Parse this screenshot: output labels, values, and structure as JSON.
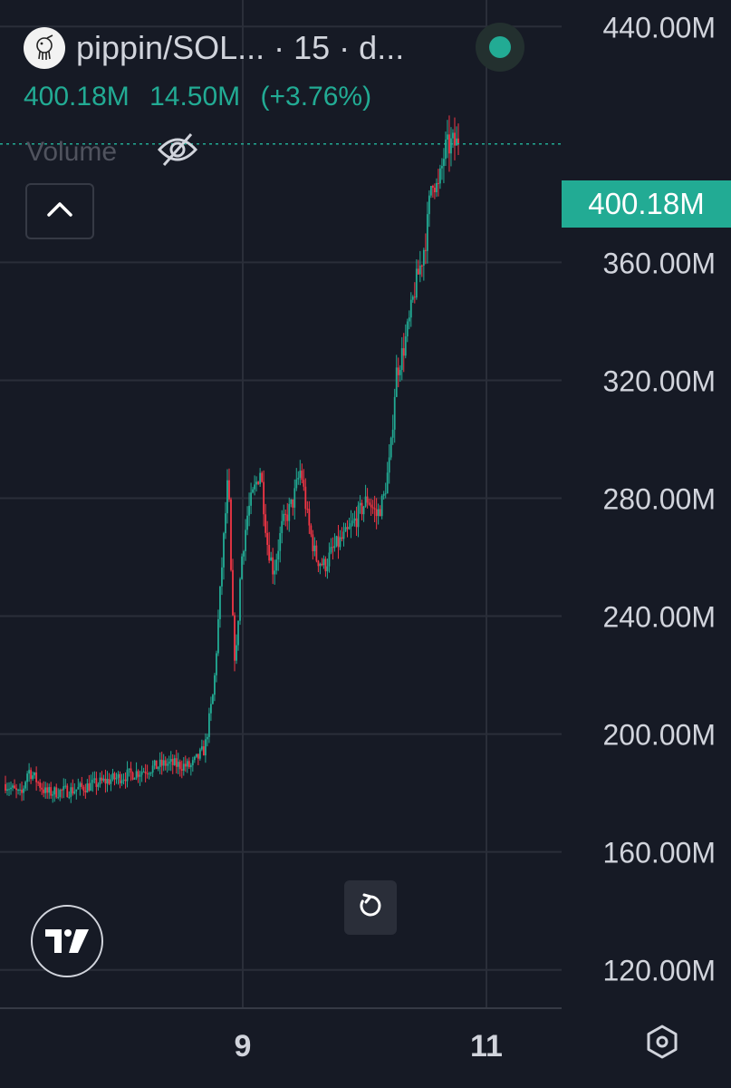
{
  "header": {
    "symbol": "pippin/SOL...",
    "separator": "·",
    "interval": "15",
    "exchange": "d..."
  },
  "ohlc": {
    "price": "400.18M",
    "change": "14.50M",
    "change_percent": "(+3.76%)"
  },
  "volume": {
    "label": "Volume"
  },
  "last_price_tag": "400.18M",
  "icons": {
    "logo": "pippin-logo-icon",
    "status": "status-dot-icon",
    "visibility": "eye-off-icon",
    "collapse": "chevron-up-icon",
    "reset": "rotate-icon",
    "brand": "tradingview-logo-icon",
    "settings": "gear-icon"
  },
  "colors": {
    "background": "#161a25",
    "up": "#22ab94",
    "down": "#f23645",
    "grid": "#2a2e39",
    "text": "#d1d4dc"
  },
  "chart_data": {
    "type": "candlestick",
    "y_ticks": [
      "440.00M",
      "360.00M",
      "320.00M",
      "280.00M",
      "240.00M",
      "200.00M",
      "160.00M",
      "120.00M"
    ],
    "y_tick_values": [
      440,
      360,
      320,
      280,
      240,
      200,
      160,
      120
    ],
    "ylim": [
      107,
      449
    ],
    "y_unit": "M",
    "x_ticks": [
      "9",
      "11"
    ],
    "last_price": 400.18,
    "grid": true,
    "price_path": [
      [
        0.0,
        183
      ],
      [
        0.035,
        179
      ],
      [
        0.05,
        188
      ],
      [
        0.09,
        180
      ],
      [
        0.15,
        181
      ],
      [
        0.22,
        184
      ],
      [
        0.29,
        187
      ],
      [
        0.355,
        190
      ],
      [
        0.41,
        189
      ],
      [
        0.44,
        195
      ],
      [
        0.46,
        215
      ],
      [
        0.48,
        262
      ],
      [
        0.492,
        288
      ],
      [
        0.5,
        243
      ],
      [
        0.508,
        222
      ],
      [
        0.52,
        258
      ],
      [
        0.535,
        275
      ],
      [
        0.55,
        283
      ],
      [
        0.563,
        290
      ],
      [
        0.578,
        265
      ],
      [
        0.592,
        255
      ],
      [
        0.61,
        270
      ],
      [
        0.635,
        279
      ],
      [
        0.652,
        290
      ],
      [
        0.668,
        272
      ],
      [
        0.685,
        260
      ],
      [
        0.705,
        257
      ],
      [
        0.725,
        263
      ],
      [
        0.755,
        268
      ],
      [
        0.785,
        276
      ],
      [
        0.8,
        280
      ],
      [
        0.82,
        274
      ],
      [
        0.835,
        280
      ],
      [
        0.85,
        294
      ],
      [
        0.862,
        322
      ],
      [
        0.878,
        330
      ],
      [
        0.892,
        340
      ],
      [
        0.905,
        352
      ],
      [
        0.918,
        360
      ],
      [
        0.93,
        370
      ],
      [
        0.942,
        390
      ],
      [
        0.955,
        384
      ],
      [
        0.97,
        398
      ],
      [
        0.985,
        400.18
      ]
    ]
  }
}
